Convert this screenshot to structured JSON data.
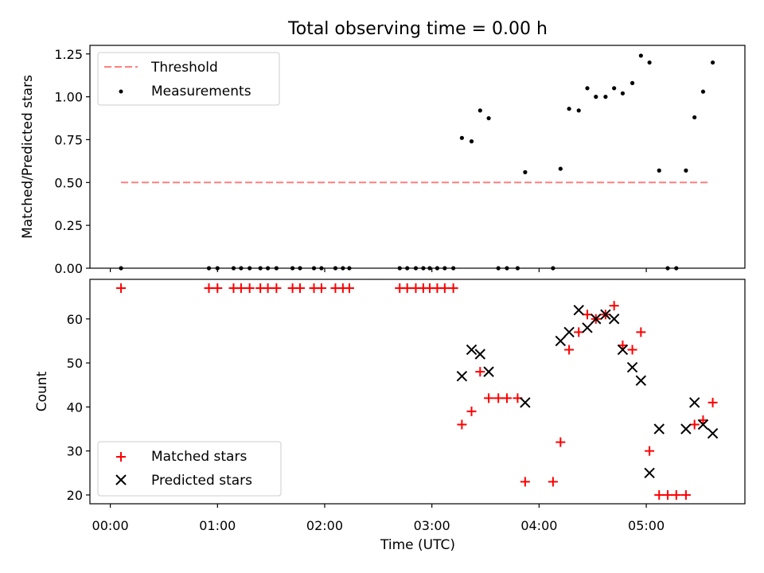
{
  "chart_data": [
    {
      "type": "scatter",
      "title": "Total observing time = 0.00 h",
      "xlabel": "",
      "ylabel": "Matched/Predicted stars",
      "ylim": [
        0,
        1.3
      ],
      "yticks": [
        0.0,
        0.25,
        0.5,
        0.75,
        1.0,
        1.25
      ],
      "ytick_labels": [
        "0.00",
        "0.25",
        "0.50",
        "0.75",
        "1.00",
        "1.25"
      ],
      "xlim": [
        -0.19,
        5.92
      ],
      "grid": false,
      "legend_position": "upper-left",
      "threshold": {
        "name": "Threshold",
        "x": [
          0.1,
          5.6
        ],
        "y": 0.5,
        "color": "#ff7f7f",
        "style": "dashed"
      },
      "series": [
        {
          "name": "Measurements",
          "color": "#000000",
          "marker": "dot",
          "x": [
            0.1,
            0.92,
            1.0,
            1.15,
            1.22,
            1.3,
            1.4,
            1.47,
            1.55,
            1.7,
            1.77,
            1.9,
            1.97,
            2.1,
            2.17,
            2.23,
            2.7,
            2.77,
            2.85,
            2.92,
            2.98,
            3.05,
            3.12,
            3.2,
            3.28,
            3.37,
            3.45,
            3.53,
            3.62,
            3.7,
            3.8,
            3.87,
            4.13,
            4.2,
            4.28,
            4.37,
            4.45,
            4.53,
            4.62,
            4.7,
            4.78,
            4.87,
            4.95,
            5.03,
            5.12,
            5.2,
            5.28,
            5.37,
            5.45,
            5.53,
            5.62
          ],
          "y": [
            0,
            0,
            0,
            0,
            0,
            0,
            0,
            0,
            0,
            0,
            0,
            0,
            0,
            0,
            0,
            0,
            0,
            0,
            0,
            0,
            0,
            0,
            0,
            0,
            0.76,
            0.74,
            0.92,
            0.875,
            0,
            0,
            0,
            0.56,
            0,
            0.58,
            0.93,
            0.92,
            1.05,
            1.0,
            1.0,
            1.05,
            1.02,
            1.08,
            1.24,
            1.2,
            0.57,
            0,
            0,
            0.57,
            0.88,
            1.03,
            1.2
          ]
        }
      ]
    },
    {
      "type": "scatter",
      "title": "",
      "xlabel": "Time (UTC)",
      "ylabel": "Count",
      "ylim": [
        18,
        69
      ],
      "yticks": [
        20,
        30,
        40,
        50,
        60
      ],
      "ytick_labels": [
        "20",
        "30",
        "40",
        "50",
        "60"
      ],
      "xlim": [
        -0.19,
        5.92
      ],
      "xticks": [
        0,
        1,
        2,
        3,
        4,
        5
      ],
      "xtick_labels": [
        "00:00",
        "01:00",
        "02:00",
        "03:00",
        "04:00",
        "05:00"
      ],
      "grid": false,
      "legend_position": "lower-left",
      "series": [
        {
          "name": "Matched stars",
          "color": "#ff0000",
          "marker": "plus",
          "x": [
            0.1,
            0.92,
            1.0,
            1.15,
            1.22,
            1.3,
            1.4,
            1.47,
            1.55,
            1.7,
            1.77,
            1.9,
            1.97,
            2.1,
            2.17,
            2.23,
            2.7,
            2.77,
            2.85,
            2.92,
            2.98,
            3.05,
            3.12,
            3.2,
            3.28,
            3.37,
            3.45,
            3.53,
            3.62,
            3.7,
            3.8,
            3.87,
            4.13,
            4.2,
            4.28,
            4.37,
            4.45,
            4.53,
            4.62,
            4.7,
            4.78,
            4.87,
            4.95,
            5.03,
            5.12,
            5.2,
            5.28,
            5.37,
            5.45,
            5.53,
            5.62
          ],
          "y": [
            67,
            67,
            67,
            67,
            67,
            67,
            67,
            67,
            67,
            67,
            67,
            67,
            67,
            67,
            67,
            67,
            67,
            67,
            67,
            67,
            67,
            67,
            67,
            67,
            36,
            39,
            48,
            42,
            42,
            42,
            42,
            23,
            23,
            32,
            53,
            57,
            61,
            60,
            61,
            63,
            54,
            53,
            57,
            30,
            20,
            20,
            20,
            20,
            36,
            37,
            41
          ]
        },
        {
          "name": "Predicted stars",
          "color": "#000000",
          "marker": "x",
          "x": [
            3.28,
            3.37,
            3.45,
            3.53,
            3.87,
            4.2,
            4.28,
            4.37,
            4.45,
            4.53,
            4.62,
            4.7,
            4.78,
            4.87,
            4.95,
            5.03,
            5.12,
            5.37,
            5.45,
            5.53,
            5.62
          ],
          "y": [
            47,
            53,
            52,
            48,
            41,
            55,
            57,
            62,
            58,
            60,
            61,
            60,
            53,
            49,
            46,
            25,
            35,
            35,
            41,
            36,
            34
          ]
        }
      ]
    }
  ]
}
